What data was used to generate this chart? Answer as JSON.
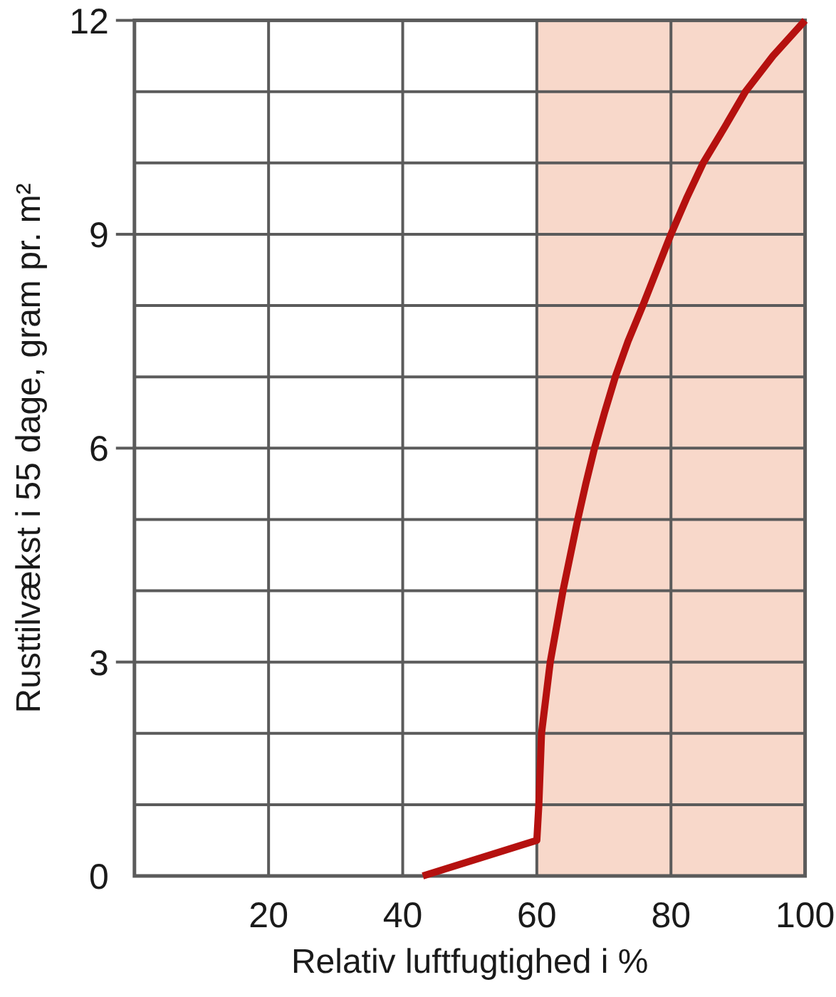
{
  "chart_data": {
    "type": "line",
    "xlabel": "Relativ luftfugtighed i %",
    "ylabel": "Rusttilvækst i 55 dage, gram pr. m²",
    "x": [
      43,
      60,
      60.3,
      60.7,
      62,
      63.9,
      66.1,
      67.3,
      68.6,
      70.1,
      71.7,
      73.6,
      75.8,
      77.9,
      80,
      82.3,
      84.8,
      88,
      91.1,
      95.2,
      100
    ],
    "series": [
      {
        "color": "#b5110f",
        "values": [
          0,
          0.5,
          1,
          2,
          3,
          4,
          5,
          5.5,
          6,
          6.5,
          7,
          7.5,
          8,
          8.5,
          9,
          9.5,
          10,
          10.5,
          11,
          11.5,
          12
        ]
      }
    ],
    "xlim": [
      0,
      100
    ],
    "ylim": [
      0,
      12
    ],
    "xticks": [
      20,
      40,
      60,
      80,
      100
    ],
    "yticks": [
      0,
      {
        "value": 1,
        "label": null
      },
      {
        "value": 2,
        "label": null
      },
      3,
      {
        "value": 4,
        "label": null
      },
      {
        "value": 5,
        "label": null
      },
      6,
      {
        "value": 7,
        "label": null
      },
      {
        "value": 8,
        "label": null
      },
      9,
      {
        "value": 10,
        "label": null
      },
      {
        "value": 11,
        "label": null
      },
      12
    ],
    "grid": true,
    "line_style": "solid",
    "bands": [
      {
        "axis": "x",
        "from": 60,
        "to": 100,
        "color": "#f8d8ca"
      }
    ]
  }
}
